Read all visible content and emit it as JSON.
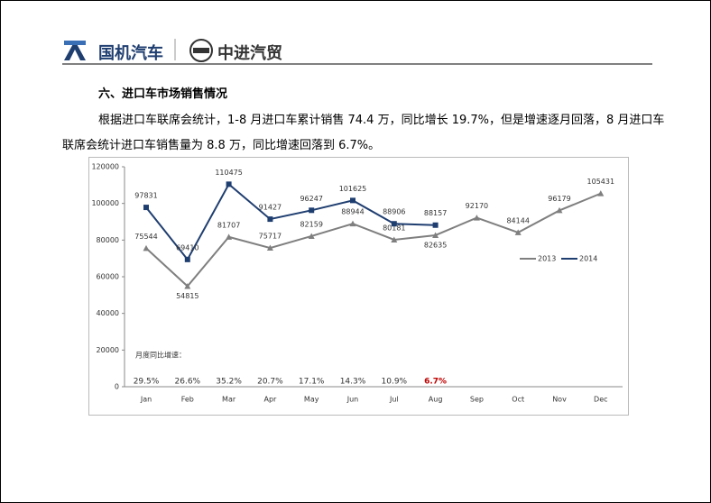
{
  "header": {
    "logo1": "国机汽车",
    "logo2": "中进汽贸"
  },
  "section": {
    "heading": "六、进口车市场销售情况",
    "paragraph": [
      "根据进口车联席会统计，1-8 月进口车累计销售 74.4 万，同比增长 19.7%，但是增速逐月回落，8 月进口车",
      "联席会统计进口车销售量为 8.8 万，同比增速回落到 6.7%。"
    ]
  },
  "chart_data": {
    "type": "line",
    "categories": [
      "Jan",
      "Feb",
      "Mar",
      "Apr",
      "May",
      "Jun",
      "Jul",
      "Aug",
      "Sep",
      "Oct",
      "Nov",
      "Dec"
    ],
    "series": [
      {
        "name": "2013",
        "color": "#7f7f7f",
        "marker": "triangle",
        "values": [
          75544,
          54815,
          81707,
          75717,
          82159,
          88944,
          80181,
          82635,
          92170,
          84144,
          96179,
          105431
        ]
      },
      {
        "name": "2014",
        "color": "#1f3e70",
        "marker": "square",
        "values": [
          97831,
          69410,
          110475,
          91427,
          96247,
          101625,
          88906,
          88157,
          null,
          null,
          null,
          null
        ]
      }
    ],
    "ylim": [
      0,
      120000
    ],
    "yticks": [
      0,
      20000,
      40000,
      60000,
      80000,
      100000,
      120000
    ],
    "growth_title": "月度同比增速：",
    "growth": [
      "29.5%",
      "26.6%",
      "35.2%",
      "20.7%",
      "17.1%",
      "14.3%",
      "10.9%",
      "6.7%"
    ],
    "highlight_color": "#c00000"
  }
}
